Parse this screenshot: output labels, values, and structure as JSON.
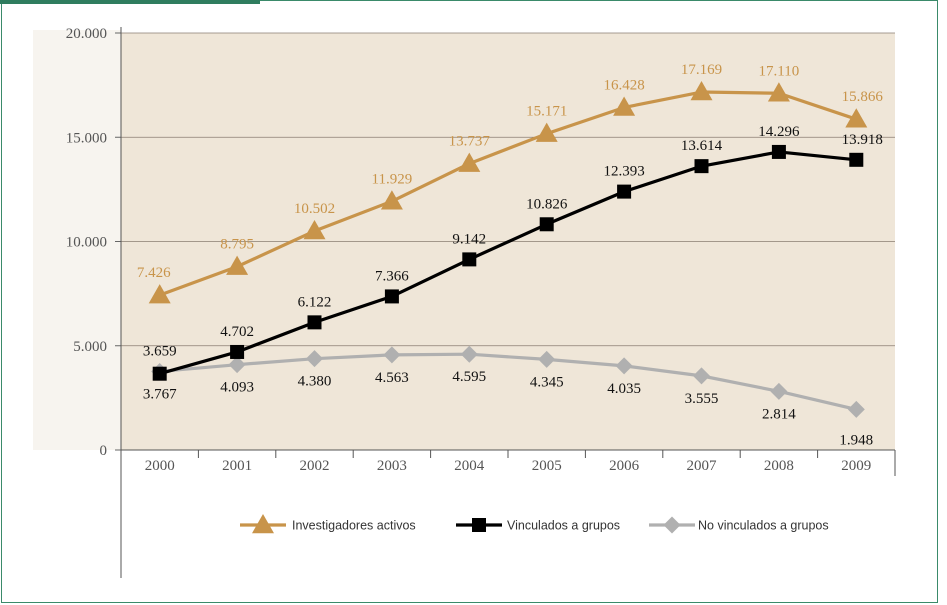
{
  "colors": {
    "plot_bg": "#efe6d8",
    "grid": "#8a7e72",
    "investigadores": "#c8944a",
    "vinculados": "#000000",
    "no_vinculados": "#b0b0b0",
    "frame": "#3a8a6a"
  },
  "chart_data": {
    "type": "line",
    "x": [
      "2000",
      "2001",
      "2002",
      "2003",
      "2004",
      "2005",
      "2006",
      "2007",
      "2008",
      "2009"
    ],
    "ylim": [
      0,
      20000
    ],
    "yticks": [
      "0",
      "5.000",
      "10.000",
      "15.000",
      "20.000"
    ],
    "grid": true,
    "legend_position": "bottom",
    "series": [
      {
        "name": "Investigadores activos",
        "marker": "triangle",
        "values": [
          7426,
          8795,
          10502,
          11929,
          13737,
          15171,
          16428,
          17169,
          17110,
          15866
        ],
        "labels": [
          "7.426",
          "8.795",
          "10.502",
          "11.929",
          "13.737",
          "15.171",
          "16.428",
          "17.169",
          "17.110",
          "15.866"
        ]
      },
      {
        "name": "Vinculados a grupos",
        "marker": "square",
        "values": [
          3659,
          4702,
          6122,
          7366,
          9142,
          10826,
          12393,
          13614,
          14296,
          13918
        ],
        "labels": [
          "3.659",
          "4.702",
          "6.122",
          "7.366",
          "9.142",
          "10.826",
          "12.393",
          "13.614",
          "14.296",
          "13.918"
        ]
      },
      {
        "name": "No vinculados a grupos",
        "marker": "diamond",
        "values": [
          3767,
          4093,
          4380,
          4563,
          4595,
          4345,
          4035,
          3555,
          2814,
          1948
        ],
        "labels": [
          "3.767",
          "4.093",
          "4.380",
          "4.563",
          "4.595",
          "4.345",
          "4.035",
          "3.555",
          "2.814",
          "1.948"
        ]
      }
    ]
  }
}
